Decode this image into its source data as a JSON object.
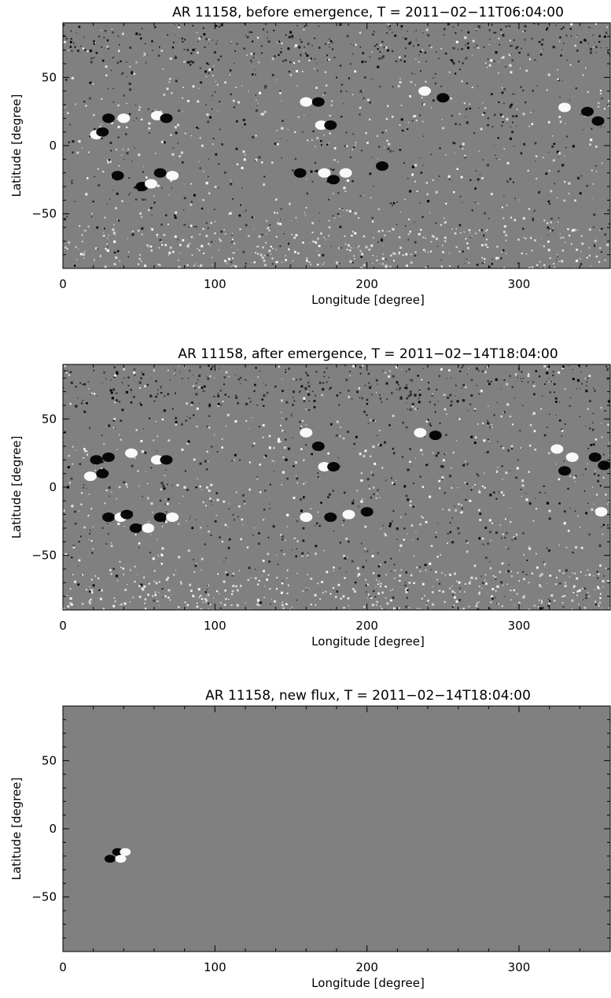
{
  "chart_data": [
    {
      "type": "heatmap",
      "title": "AR 11158, before emergence, T = 2011−02−11T06:04:00",
      "xlabel": "Longitude [degree]",
      "ylabel": "Latitude [degree]",
      "xlim": [
        0,
        360
      ],
      "ylim": [
        -90,
        90
      ],
      "xticks": [
        0,
        100,
        200,
        300
      ],
      "xtick_labels": [
        "0",
        "100",
        "200",
        "300"
      ],
      "yticks": [
        -50,
        0,
        50
      ],
      "ytick_labels": [
        "−50",
        "0",
        "50"
      ],
      "colormap": "grayscale",
      "background_color": "#808080",
      "features": [
        {
          "lon": 22,
          "lat": 8,
          "polarity": "positive"
        },
        {
          "lon": 26,
          "lat": 10,
          "polarity": "negative"
        },
        {
          "lon": 30,
          "lat": 20,
          "polarity": "negative"
        },
        {
          "lon": 40,
          "lat": 20,
          "polarity": "positive"
        },
        {
          "lon": 62,
          "lat": 22,
          "polarity": "positive"
        },
        {
          "lon": 68,
          "lat": 20,
          "polarity": "negative"
        },
        {
          "lon": 36,
          "lat": -22,
          "polarity": "negative"
        },
        {
          "lon": 52,
          "lat": -30,
          "polarity": "negative"
        },
        {
          "lon": 58,
          "lat": -28,
          "polarity": "positive"
        },
        {
          "lon": 64,
          "lat": -20,
          "polarity": "negative"
        },
        {
          "lon": 72,
          "lat": -22,
          "polarity": "positive"
        },
        {
          "lon": 160,
          "lat": 32,
          "polarity": "positive"
        },
        {
          "lon": 168,
          "lat": 32,
          "polarity": "negative"
        },
        {
          "lon": 170,
          "lat": 15,
          "polarity": "positive"
        },
        {
          "lon": 176,
          "lat": 15,
          "polarity": "negative"
        },
        {
          "lon": 156,
          "lat": -20,
          "polarity": "negative"
        },
        {
          "lon": 172,
          "lat": -20,
          "polarity": "positive"
        },
        {
          "lon": 178,
          "lat": -25,
          "polarity": "negative"
        },
        {
          "lon": 186,
          "lat": -20,
          "polarity": "positive"
        },
        {
          "lon": 210,
          "lat": -15,
          "polarity": "negative"
        },
        {
          "lon": 250,
          "lat": 35,
          "polarity": "negative"
        },
        {
          "lon": 238,
          "lat": 40,
          "polarity": "positive"
        },
        {
          "lon": 330,
          "lat": 28,
          "polarity": "positive"
        },
        {
          "lon": 345,
          "lat": 25,
          "polarity": "negative"
        },
        {
          "lon": 352,
          "lat": 18,
          "polarity": "negative"
        }
      ]
    },
    {
      "type": "heatmap",
      "title": "AR 11158, after emergence, T = 2011−02−14T18:04:00",
      "xlabel": "Longitude [degree]",
      "ylabel": "Latitude [degree]",
      "xlim": [
        0,
        360
      ],
      "ylim": [
        -90,
        90
      ],
      "xticks": [
        0,
        100,
        200,
        300
      ],
      "xtick_labels": [
        "0",
        "100",
        "200",
        "300"
      ],
      "yticks": [
        -50,
        0,
        50
      ],
      "ytick_labels": [
        "−50",
        "0",
        "50"
      ],
      "colormap": "grayscale",
      "background_color": "#808080",
      "features": [
        {
          "lon": 18,
          "lat": 8,
          "polarity": "positive"
        },
        {
          "lon": 26,
          "lat": 10,
          "polarity": "negative"
        },
        {
          "lon": 22,
          "lat": 20,
          "polarity": "negative"
        },
        {
          "lon": 30,
          "lat": 22,
          "polarity": "negative"
        },
        {
          "lon": 45,
          "lat": 25,
          "polarity": "positive"
        },
        {
          "lon": 62,
          "lat": 20,
          "polarity": "positive"
        },
        {
          "lon": 68,
          "lat": 20,
          "polarity": "negative"
        },
        {
          "lon": 30,
          "lat": -22,
          "polarity": "negative"
        },
        {
          "lon": 38,
          "lat": -22,
          "polarity": "positive"
        },
        {
          "lon": 42,
          "lat": -20,
          "polarity": "negative"
        },
        {
          "lon": 48,
          "lat": -30,
          "polarity": "negative"
        },
        {
          "lon": 56,
          "lat": -30,
          "polarity": "positive"
        },
        {
          "lon": 64,
          "lat": -22,
          "polarity": "negative"
        },
        {
          "lon": 72,
          "lat": -22,
          "polarity": "positive"
        },
        {
          "lon": 160,
          "lat": 40,
          "polarity": "positive"
        },
        {
          "lon": 168,
          "lat": 30,
          "polarity": "negative"
        },
        {
          "lon": 172,
          "lat": 15,
          "polarity": "positive"
        },
        {
          "lon": 178,
          "lat": 15,
          "polarity": "negative"
        },
        {
          "lon": 160,
          "lat": -22,
          "polarity": "positive"
        },
        {
          "lon": 176,
          "lat": -22,
          "polarity": "negative"
        },
        {
          "lon": 188,
          "lat": -20,
          "polarity": "positive"
        },
        {
          "lon": 200,
          "lat": -18,
          "polarity": "negative"
        },
        {
          "lon": 245,
          "lat": 38,
          "polarity": "negative"
        },
        {
          "lon": 235,
          "lat": 40,
          "polarity": "positive"
        },
        {
          "lon": 325,
          "lat": 28,
          "polarity": "positive"
        },
        {
          "lon": 335,
          "lat": 22,
          "polarity": "positive"
        },
        {
          "lon": 330,
          "lat": 12,
          "polarity": "negative"
        },
        {
          "lon": 350,
          "lat": 22,
          "polarity": "negative"
        },
        {
          "lon": 356,
          "lat": 16,
          "polarity": "negative"
        },
        {
          "lon": 354,
          "lat": -18,
          "polarity": "positive"
        }
      ]
    },
    {
      "type": "heatmap",
      "title": "AR 11158, new flux, T = 2011−02−14T18:04:00",
      "xlabel": "Longitude [degree]",
      "ylabel": "Latitude [degree]",
      "xlim": [
        0,
        360
      ],
      "ylim": [
        -90,
        90
      ],
      "xticks": [
        0,
        100,
        200,
        300
      ],
      "xtick_labels": [
        "0",
        "100",
        "200",
        "300"
      ],
      "yticks": [
        -50,
        0,
        50
      ],
      "ytick_labels": [
        "−50",
        "0",
        "50"
      ],
      "colormap": "grayscale",
      "background_color": "#808080",
      "features": [
        {
          "lon": 31,
          "lat": -22,
          "polarity": "negative"
        },
        {
          "lon": 36,
          "lat": -17,
          "polarity": "negative"
        },
        {
          "lon": 38,
          "lat": -22,
          "polarity": "positive"
        },
        {
          "lon": 41,
          "lat": -17,
          "polarity": "positive"
        }
      ]
    }
  ]
}
